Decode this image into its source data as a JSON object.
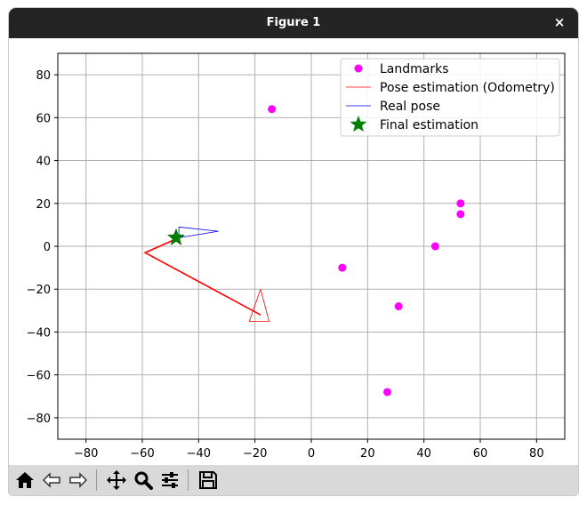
{
  "window": {
    "title": "Figure 1",
    "close_label": "×"
  },
  "toolbar": {
    "buttons": [
      "home",
      "back",
      "forward",
      "pan",
      "zoom",
      "configure-subplots",
      "save"
    ]
  },
  "chart_data": {
    "type": "scatter",
    "xlim": [
      -90,
      90
    ],
    "ylim": [
      -90,
      90
    ],
    "xticks": [
      -80,
      -60,
      -40,
      -20,
      0,
      20,
      40,
      60,
      80
    ],
    "yticks": [
      -80,
      -60,
      -40,
      -20,
      0,
      20,
      40,
      60,
      80
    ],
    "grid": true,
    "legend_position": "top-right",
    "legend": [
      {
        "label": "Landmarks",
        "marker": "circle",
        "color": "#ff00ff"
      },
      {
        "label": "Pose estimation (Odometry)",
        "marker": "line",
        "color": "#ff0000"
      },
      {
        "label": "Real pose",
        "marker": "line",
        "color": "#0000ff"
      },
      {
        "label": "Final estimation",
        "marker": "star",
        "color": "#008000"
      }
    ],
    "landmarks": {
      "x": [
        -14,
        44,
        53,
        53,
        11,
        31,
        27
      ],
      "y": [
        64,
        0,
        20,
        15,
        -10,
        -28,
        -68
      ]
    },
    "odometry_path": {
      "x": [
        -18,
        -59,
        -47
      ],
      "y": [
        -32,
        -3,
        4
      ]
    },
    "odometry_triangle": {
      "x": [
        -18,
        -22,
        -15,
        -18
      ],
      "y": [
        -20,
        -35,
        -35,
        -20
      ]
    },
    "real_pose_triangle": {
      "x": [
        -47,
        -33,
        -47,
        -47
      ],
      "y": [
        9,
        7,
        4,
        9
      ]
    },
    "final_estimation": {
      "x": -48,
      "y": 4
    }
  }
}
